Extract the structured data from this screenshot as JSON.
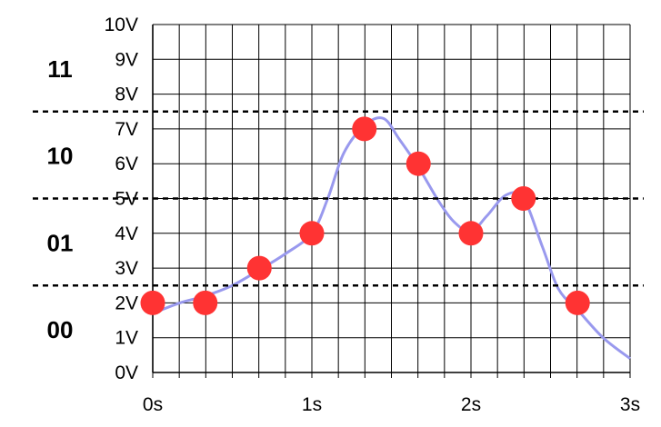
{
  "chart_data": {
    "type": "scatter",
    "title": "",
    "xlabel": "",
    "ylabel": "",
    "xlim": [
      0,
      3
    ],
    "ylim": [
      0,
      10
    ],
    "x_ticks": [
      0,
      1,
      2,
      3
    ],
    "x_tick_labels": [
      "0s",
      "1s",
      "2s",
      "3s"
    ],
    "y_ticks": [
      0,
      1,
      2,
      3,
      4,
      5,
      6,
      7,
      8,
      9,
      10
    ],
    "y_tick_labels": [
      "0V",
      "1V",
      "2V",
      "3V",
      "4V",
      "5V",
      "6V",
      "7V",
      "8V",
      "9V",
      "10V"
    ],
    "grid": true,
    "series": [
      {
        "kind": "line",
        "color": "#9999ee",
        "x": [
          0,
          0.17,
          0.33,
          0.5,
          0.67,
          0.83,
          1.0,
          1.1,
          1.2,
          1.33,
          1.45,
          1.55,
          1.67,
          1.8,
          1.9,
          2.0,
          2.1,
          2.22,
          2.33,
          2.45,
          2.55,
          2.67,
          2.83,
          3.0
        ],
        "y": [
          1.7,
          2.0,
          2.2,
          2.5,
          2.95,
          3.4,
          4.0,
          5.0,
          6.3,
          7.1,
          7.3,
          6.7,
          5.9,
          4.9,
          4.3,
          4.05,
          4.5,
          5.1,
          5.0,
          3.6,
          2.4,
          1.8,
          1.0,
          0.4
        ]
      },
      {
        "kind": "points",
        "color": "#ff3333",
        "x": [
          0,
          0.33,
          0.67,
          1.0,
          1.33,
          1.67,
          2.0,
          2.33,
          2.67
        ],
        "y": [
          2,
          2,
          3,
          4,
          7,
          6,
          4,
          5,
          2
        ]
      }
    ],
    "thresholds": [
      {
        "value": 2.5,
        "style": "dashed"
      },
      {
        "value": 5.0,
        "style": "dashed"
      },
      {
        "value": 7.5,
        "style": "dashed"
      }
    ],
    "bands": [
      {
        "label": "00",
        "value": 1.25
      },
      {
        "label": "01",
        "value": 3.75
      },
      {
        "label": "10",
        "value": 6.25
      },
      {
        "label": "11",
        "value": 8.75
      }
    ]
  }
}
